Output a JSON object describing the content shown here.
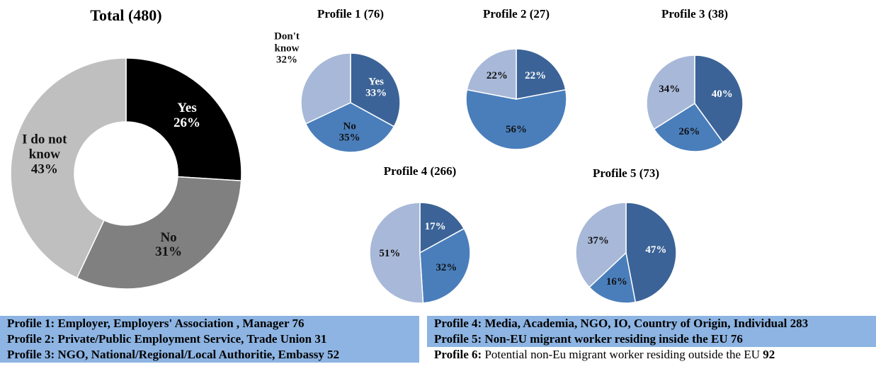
{
  "chart_data": [
    {
      "type": "donut",
      "title": "Total (480)",
      "categories": [
        "Yes",
        "No",
        "I do not know"
      ],
      "values": [
        26,
        31,
        43
      ],
      "value_labels": [
        "26%",
        "31%",
        "43%"
      ],
      "colors": [
        "#000000",
        "#808080",
        "#bfbfbf"
      ]
    },
    {
      "type": "pie",
      "title": "Profile 1 (76)",
      "categories": [
        "Yes",
        "No",
        "Don't know"
      ],
      "values": [
        33,
        35,
        32
      ],
      "value_labels": [
        "33%",
        "35%",
        "32%"
      ],
      "colors": [
        "#3b6397",
        "#4a7ebb",
        "#a8b8d8"
      ]
    },
    {
      "type": "pie",
      "title": "Profile 2 (27)",
      "values": [
        22,
        56,
        22
      ],
      "value_labels": [
        "22%",
        "56%",
        "22%"
      ],
      "colors": [
        "#3b6397",
        "#4a7ebb",
        "#a8b8d8"
      ]
    },
    {
      "type": "pie",
      "title": "Profile 3 (38)",
      "values": [
        40,
        26,
        34
      ],
      "value_labels": [
        "40%",
        "26%",
        "34%"
      ],
      "colors": [
        "#3b6397",
        "#4a7ebb",
        "#a8b8d8"
      ]
    },
    {
      "type": "pie",
      "title": "Profile 4 (266)",
      "values": [
        17,
        32,
        51
      ],
      "value_labels": [
        "17%",
        "32%",
        "51%"
      ],
      "colors": [
        "#3b6397",
        "#4a7ebb",
        "#a8b8d8"
      ]
    },
    {
      "type": "pie",
      "title": "Profile 5 (73)",
      "values": [
        47,
        16,
        37
      ],
      "value_labels": [
        "47%",
        "16%",
        "37%"
      ],
      "colors": [
        "#3b6397",
        "#4a7ebb",
        "#a8b8d8"
      ]
    }
  ],
  "profile_notes": [
    {
      "label": "Profile 1:",
      "text": "Employer, Employers' Association , Manager",
      "count": "76"
    },
    {
      "label": "Profile 2:",
      "text": "Private/Public Employment Service, Trade Union",
      "count": "31"
    },
    {
      "label": "Profile 3:",
      "text": "NGO, National/Regional/Local Authoritie, Embassy",
      "count": "52"
    },
    {
      "label": "Profile 4:",
      "text": "Media, Academia, NGO, IO, Country of Origin, Individual",
      "count": "283"
    },
    {
      "label": "Profile 5:",
      "text": "Non-EU migrant worker residing inside the EU",
      "count": "76"
    },
    {
      "label": "Profile 6:",
      "text": "Potential non-Eu migrant worker residing outside the EU",
      "count": "92"
    }
  ]
}
